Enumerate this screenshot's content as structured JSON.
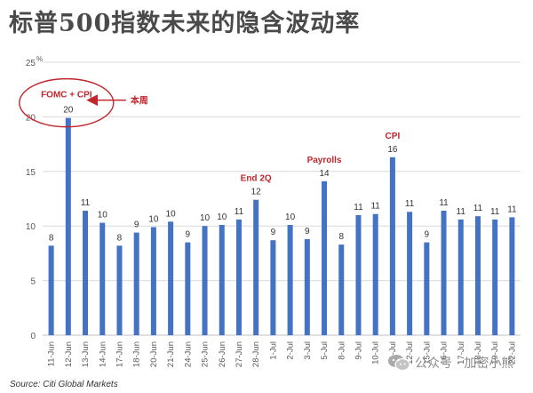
{
  "page_title": "标普500指数未来的隐含波动率",
  "source": "Source: Citi Global Markets",
  "watermark": {
    "icon": "wechat-icon",
    "text": "公众号 · 加密小熊"
  },
  "colors": {
    "bar": "#4472C4",
    "event": "#C0262B",
    "grid": "#d9d9d9",
    "axis_text": "#595959"
  },
  "chart_data": {
    "type": "bar",
    "categories": [
      "11-Jun",
      "12-Jun",
      "13-Jun",
      "14-Jun",
      "17-Jun",
      "18-Jun",
      "20-Jun",
      "21-Jun",
      "24-Jun",
      "25-Jun",
      "26-Jun",
      "27-Jun",
      "28-Jun",
      "1-Jul",
      "2-Jul",
      "3-Jul",
      "5-Jul",
      "8-Jul",
      "9-Jul",
      "10-Jul",
      "11-Jul",
      "12-Jul",
      "15-Jul",
      "16-Jul",
      "17-Jul",
      "18-Jul",
      "19-Jul",
      "22-Jul"
    ],
    "values": [
      8.2,
      19.9,
      11.4,
      10.3,
      8.2,
      9.4,
      9.9,
      10.4,
      8.5,
      10.0,
      10.1,
      10.6,
      12.4,
      8.7,
      10.1,
      8.8,
      14.1,
      8.3,
      11.0,
      11.1,
      16.3,
      11.3,
      8.5,
      11.4,
      10.6,
      10.9,
      10.6,
      10.8
    ],
    "data_labels": [
      "8",
      "20",
      "11",
      "10",
      "8",
      "9",
      "10",
      "10",
      "9",
      "10",
      "10",
      "11",
      "12",
      "9",
      "10",
      "9",
      "14",
      "8",
      "11",
      "11",
      "16",
      "11",
      "9",
      "11",
      "11",
      "11",
      "11",
      "11"
    ],
    "y_ticks": [
      "0",
      "5",
      "10",
      "15",
      "20",
      "25"
    ],
    "y_tick_values": [
      0,
      5,
      10,
      15,
      20,
      25
    ],
    "ylim": [
      0,
      25
    ],
    "y_unit": "%",
    "grid": true,
    "series": [
      {
        "name": "",
        "color": "#4472C4"
      }
    ],
    "annotations": [
      {
        "text": "FOMC + CPI",
        "category": "12-Jun",
        "circled": true
      },
      {
        "text": "本周",
        "category": "12-Jun",
        "arrow": true
      },
      {
        "text": "End 2Q",
        "category": "28-Jun"
      },
      {
        "text": "Payrolls",
        "category": "5-Jul"
      },
      {
        "text": "CPI",
        "category": "11-Jul"
      }
    ]
  }
}
